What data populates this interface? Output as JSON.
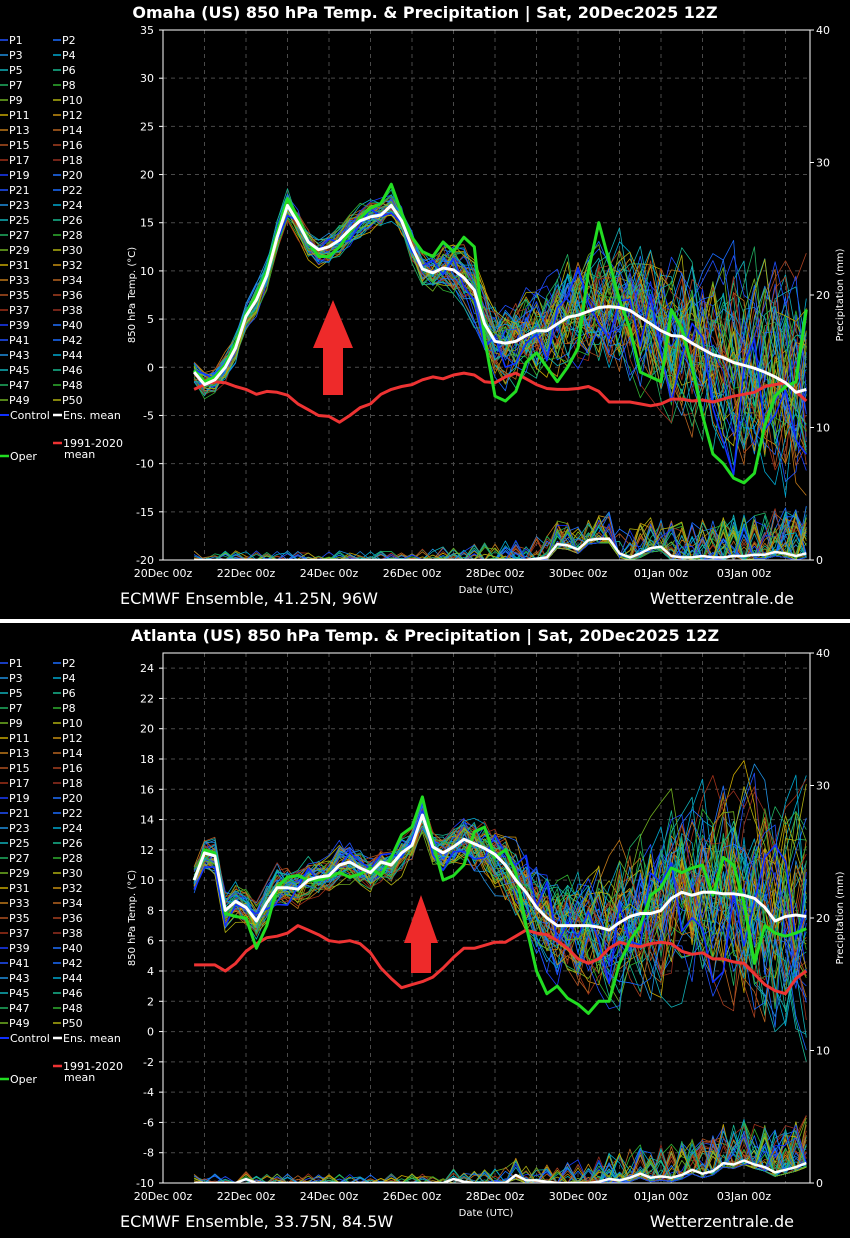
{
  "member_colors": [
    "#2050ff",
    "#1a6cff",
    "#1f8fe0",
    "#00a8d0",
    "#10b0b8",
    "#18b890",
    "#20b060",
    "#30b030",
    "#70b020",
    "#b0b010",
    "#c8a800",
    "#c89010",
    "#c07818",
    "#b86420",
    "#b05020",
    "#a84020",
    "#a03018",
    "#983020",
    "#1a3cff",
    "#2070ff"
  ],
  "legend": {
    "members": [
      "P1",
      "P2",
      "P3",
      "P4",
      "P5",
      "P6",
      "P7",
      "P8",
      "P9",
      "P10",
      "P11",
      "P12",
      "P13",
      "P14",
      "P15",
      "P16",
      "P17",
      "P18",
      "P19",
      "P20",
      "P21",
      "P22",
      "P23",
      "P24",
      "P25",
      "P26",
      "P27",
      "P28",
      "P29",
      "P30",
      "P31",
      "P32",
      "P33",
      "P34",
      "P35",
      "P36",
      "P37",
      "P38",
      "P39",
      "P40",
      "P41",
      "P42",
      "P43",
      "P44",
      "P45",
      "P46",
      "P47",
      "P48",
      "P49",
      "P50"
    ],
    "control": "Control",
    "ens_mean": "Ens. mean",
    "clim_line1": "1991-2020",
    "clim_line2": "mean",
    "oper": "Oper",
    "colors": {
      "control": "#1030ff",
      "ens_mean": "#ffffff",
      "clim": "#ee3333",
      "oper": "#22dd22"
    }
  },
  "chart_data": [
    {
      "type": "line",
      "title": "Omaha  (US)  850 hPa Temp. & Precipitation | Sat, 20Dec2025 12Z",
      "footer_left": "ECMWF Ensemble, 41.25N, 96W",
      "footer_right": "Wetterzentrale.de",
      "xlabel": "Date (UTC)",
      "ylabel": "850 hPa Temp. (°C)",
      "y2label": "Precipitation (mm)",
      "ylim": [
        -20,
        35
      ],
      "yticks": [
        "35",
        "30",
        "25",
        "20",
        "15",
        "10",
        "5",
        "0",
        "-5",
        "-10",
        "-15",
        "-20"
      ],
      "y2lim": [
        0,
        40
      ],
      "y2ticks": [
        "40",
        "30",
        "20",
        "10",
        "0"
      ],
      "xticks": [
        "20Dec 00z",
        "22Dec 00z",
        "24Dec 00z",
        "26Dec 00z",
        "28Dec 00z",
        "30Dec 00z",
        "01Jan 00z",
        "03Jan 00z"
      ],
      "x_start": "20Dec 18z",
      "x_step_hours": 6,
      "grid": true,
      "series": {
        "ens_mean": [
          -0.5,
          -1.8,
          -1.3,
          0,
          2,
          5.3,
          7,
          9.5,
          13.5,
          16.8,
          15,
          13,
          12.2,
          12.5,
          13.2,
          14.3,
          15.2,
          15.6,
          15.8,
          16.8,
          15.2,
          12.5,
          10.2,
          9.8,
          10.3,
          10.1,
          9.3,
          8,
          4.5,
          2.7,
          2.5,
          2.7,
          3.3,
          3.8,
          3.8,
          4.5,
          5.2,
          5.4,
          5.8,
          6.2,
          6.3,
          6.2,
          5.9,
          5.2,
          4.5,
          3.8,
          3.3,
          3.2,
          2.5,
          1.9,
          1.3,
          1,
          0.5,
          0.2,
          -0.1,
          -0.5,
          -1,
          -1.6,
          -2.6,
          -2.3
        ],
        "clim_1991_2020": [
          -2.3,
          -1.8,
          -1.5,
          -1.6,
          -2,
          -2.3,
          -2.8,
          -2.5,
          -2.6,
          -2.9,
          -3.8,
          -4.4,
          -5,
          -5.1,
          -5.7,
          -5,
          -4.2,
          -3.8,
          -2.8,
          -2.3,
          -2,
          -1.8,
          -1.3,
          -1,
          -1.2,
          -0.8,
          -0.6,
          -0.8,
          -1.5,
          -1.6,
          -1,
          -0.6,
          -1.2,
          -1.8,
          -2.2,
          -2.3,
          -2.3,
          -2.2,
          -2,
          -2.5,
          -3.6,
          -3.6,
          -3.6,
          -3.8,
          -4,
          -3.8,
          -3.3,
          -3.3,
          -3.5,
          -3.4,
          -3.6,
          -3.3,
          -3,
          -2.8,
          -2.6,
          -2,
          -1.8,
          -1.6,
          -2.5,
          -3.5
        ],
        "oper": [
          -0.3,
          -1.5,
          -1,
          0.3,
          2.5,
          5.5,
          7.5,
          10,
          14,
          17.5,
          15.5,
          13,
          11.5,
          11.5,
          12.5,
          14,
          15.5,
          16.5,
          17,
          19,
          16,
          13.5,
          12,
          11.5,
          13,
          12,
          13.5,
          12.5,
          3,
          -3,
          -3.5,
          -2.5,
          0.5,
          1.5,
          0,
          -1.5,
          0,
          2,
          10,
          15,
          11,
          7,
          4,
          -0.5,
          -1,
          -1.5,
          6,
          4,
          0,
          -5,
          -9,
          -10,
          -11.5,
          -12,
          -11,
          -6,
          -3,
          -2,
          -1.5,
          6
        ],
        "precip_mean": [
          0,
          0,
          0,
          0,
          0,
          0,
          0,
          0,
          0,
          0,
          0,
          0,
          0,
          0,
          0,
          0,
          0,
          0,
          0,
          0,
          0,
          0,
          0,
          0,
          0,
          0,
          0,
          0,
          0,
          0,
          0,
          0,
          0,
          0.1,
          0.2,
          1.2,
          1.1,
          0.8,
          1.5,
          1.6,
          1.6,
          0.5,
          0.2,
          0.5,
          0.9,
          1,
          0.3,
          0.2,
          0.2,
          0.3,
          0.2,
          0.2,
          0.3,
          0.3,
          0.4,
          0.4,
          0.6,
          0.5,
          0.3,
          0.5
        ]
      }
    },
    {
      "type": "line",
      "title": "Atlanta  (US)  850 hPa Temp. & Precipitation | Sat, 20Dec2025 12Z",
      "footer_left": "ECMWF Ensemble, 33.75N, 84.5W",
      "footer_right": "Wetterzentrale.de",
      "xlabel": "Date (UTC)",
      "ylabel": "850 hPa Temp. (°C)",
      "y2label": "Precipitation (mm)",
      "ylim": [
        -10,
        25
      ],
      "yticks": [
        "24",
        "22",
        "20",
        "18",
        "16",
        "14",
        "12",
        "10",
        "8",
        "6",
        "4",
        "2",
        "0",
        "-2",
        "-4",
        "-6",
        "-8",
        "-10"
      ],
      "y2lim": [
        0,
        40
      ],
      "y2ticks": [
        "40",
        "30",
        "20",
        "10",
        "0"
      ],
      "xticks": [
        "20Dec 00z",
        "22Dec 00z",
        "24Dec 00z",
        "26Dec 00z",
        "28Dec 00z",
        "30Dec 00z",
        "01Jan 00z",
        "03Jan 00z"
      ],
      "x_start": "20Dec 18z",
      "x_step_hours": 6,
      "grid": true,
      "series": {
        "ens_mean": [
          10,
          11.8,
          11.6,
          8,
          8.6,
          8.2,
          7.3,
          8.5,
          9.5,
          9.5,
          9.4,
          10,
          10.2,
          10.3,
          11,
          11.2,
          10.8,
          10.5,
          11.2,
          11,
          11.8,
          12.3,
          14.3,
          12.2,
          11.8,
          12.2,
          12.7,
          12.4,
          12.1,
          11.7,
          11,
          10,
          9.2,
          8.2,
          7.5,
          7,
          7,
          7,
          7,
          6.9,
          6.7,
          7.2,
          7.6,
          7.8,
          7.8,
          8,
          8.8,
          9.2,
          9,
          9.2,
          9.2,
          9.1,
          9.1,
          9,
          8.8,
          8.2,
          7.3,
          7.6,
          7.7,
          7.6
        ],
        "clim_1991_2020": [
          4.4,
          4.4,
          4.4,
          4,
          4.5,
          5.3,
          5.8,
          6.2,
          6.3,
          6.5,
          7,
          6.7,
          6.4,
          6,
          5.9,
          6,
          5.8,
          5.2,
          4.2,
          3.5,
          2.9,
          3.1,
          3.3,
          3.6,
          4.2,
          4.9,
          5.5,
          5.5,
          5.7,
          5.9,
          5.9,
          6.3,
          6.7,
          6.5,
          6.4,
          6,
          5.5,
          4.8,
          4.5,
          4.8,
          5.5,
          5.9,
          5.7,
          5.6,
          5.8,
          5.9,
          5.8,
          5.3,
          5.1,
          5.2,
          4.8,
          4.8,
          4.6,
          4.5,
          3.8,
          3.1,
          2.7,
          2.5,
          3.5,
          4
        ],
        "oper": [
          10,
          12,
          11.8,
          7.8,
          7.6,
          7.5,
          5.5,
          7,
          9.5,
          10.2,
          10.3,
          10,
          10,
          10.2,
          10.5,
          10.2,
          10.4,
          10.8,
          10.3,
          11.5,
          13,
          13.5,
          15.5,
          12.5,
          10,
          10.3,
          11,
          13.2,
          13.5,
          11.5,
          12,
          10.5,
          7,
          4,
          2.5,
          3,
          2.2,
          1.8,
          1.2,
          2,
          2,
          4.5,
          6,
          7,
          9,
          9.5,
          10.8,
          10.5,
          10.8,
          11,
          9,
          11.5,
          11,
          8.5,
          4.5,
          7,
          6.5,
          6.3,
          6.5,
          6.8
        ],
        "precip_mean": [
          0,
          0,
          0,
          0,
          0,
          0.3,
          0,
          0,
          0,
          0,
          0,
          0,
          0,
          0,
          0,
          0,
          0,
          0,
          0,
          0,
          0,
          0,
          0,
          0,
          0,
          0.3,
          0.1,
          0,
          0,
          0,
          0,
          0.6,
          0.2,
          0.2,
          0.1,
          0,
          0,
          0,
          0,
          0.1,
          0.3,
          0.2,
          0.4,
          0.7,
          0.4,
          0.5,
          0.4,
          0.6,
          1,
          0.7,
          0.9,
          1.5,
          1.4,
          1.7,
          1.4,
          1.2,
          0.8,
          1,
          1.2,
          1.5
        ]
      }
    }
  ]
}
